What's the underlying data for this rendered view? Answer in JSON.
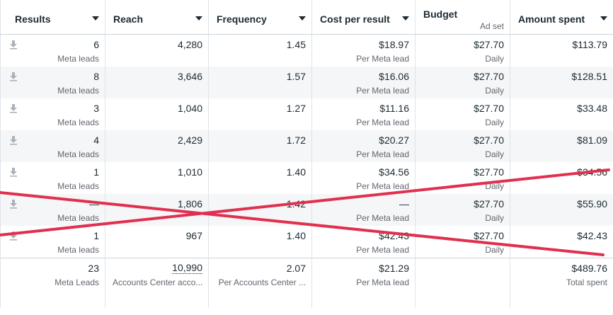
{
  "header": {
    "columns": [
      {
        "label": "Results",
        "sub": ""
      },
      {
        "label": "Reach",
        "sub": ""
      },
      {
        "label": "Frequency",
        "sub": ""
      },
      {
        "label": "Cost per result",
        "sub": ""
      },
      {
        "label": "Budget",
        "sub": "Ad set"
      },
      {
        "label": "Amount spent",
        "sub": ""
      }
    ]
  },
  "rows": [
    {
      "results": "6",
      "results_sub": "Meta leads",
      "reach": "4,280",
      "frequency": "1.45",
      "cost": "$18.97",
      "cost_sub": "Per Meta lead",
      "budget": "$27.70",
      "budget_sub": "Daily",
      "spent": "$113.79"
    },
    {
      "results": "8",
      "results_sub": "Meta leads",
      "reach": "3,646",
      "frequency": "1.57",
      "cost": "$16.06",
      "cost_sub": "Per Meta lead",
      "budget": "$27.70",
      "budget_sub": "Daily",
      "spent": "$128.51"
    },
    {
      "results": "3",
      "results_sub": "Meta leads",
      "reach": "1,040",
      "frequency": "1.27",
      "cost": "$11.16",
      "cost_sub": "Per Meta lead",
      "budget": "$27.70",
      "budget_sub": "Daily",
      "spent": "$33.48"
    },
    {
      "results": "4",
      "results_sub": "Meta leads",
      "reach": "2,429",
      "frequency": "1.72",
      "cost": "$20.27",
      "cost_sub": "Per Meta lead",
      "budget": "$27.70",
      "budget_sub": "Daily",
      "spent": "$81.09"
    },
    {
      "results": "1",
      "results_sub": "Meta leads",
      "reach": "1,010",
      "frequency": "1.40",
      "cost": "$34.56",
      "cost_sub": "Per Meta lead",
      "budget": "$27.70",
      "budget_sub": "Daily",
      "spent": "$34.56"
    },
    {
      "results": "—",
      "results_sub": "Meta leads",
      "reach": "1,806",
      "frequency": "1.42",
      "cost": "—",
      "cost_sub": "Per Meta lead",
      "budget": "$27.70",
      "budget_sub": "Daily",
      "spent": "$55.90"
    },
    {
      "results": "1",
      "results_sub": "Meta leads",
      "reach": "967",
      "frequency": "1.40",
      "cost": "$42.43",
      "cost_sub": "Per Meta lead",
      "budget": "$27.70",
      "budget_sub": "Daily",
      "spent": "$42.43"
    }
  ],
  "totals": {
    "results": "23",
    "results_sub": "Meta Leads",
    "reach": "10,990",
    "reach_sub": "Accounts Center acco...",
    "frequency": "2.07",
    "frequency_sub": "Per Accounts Center ...",
    "cost": "$21.29",
    "cost_sub": "Per Meta lead",
    "spent": "$489.76",
    "spent_sub": "Total spent"
  },
  "colors": {
    "strike": "#e0304f",
    "alt_row": "#f5f6f7"
  }
}
